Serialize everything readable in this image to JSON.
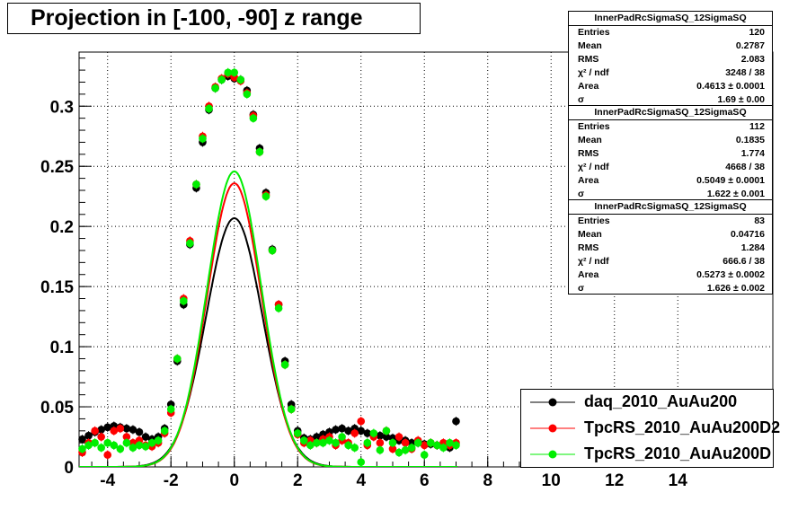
{
  "header": {
    "title": "Projection in [-100, -90] z range"
  },
  "stats": [
    {
      "name": "InnerPadRcSigmaSQ_12SigmaSQ",
      "color": "#000000",
      "rows": [
        {
          "label": "Entries",
          "value": "120"
        },
        {
          "label": "Mean",
          "value": "0.2787"
        },
        {
          "label": "RMS",
          "value": "2.083"
        },
        {
          "label": "χ² / ndf",
          "value": "3248 / 38"
        },
        {
          "label": "Area",
          "value": "0.4613 ± 0.0001"
        },
        {
          "label": "σ",
          "value": "1.69 ± 0.00"
        }
      ]
    },
    {
      "name": "InnerPadRcSigmaSQ_12SigmaSQ",
      "color": "#ff0000",
      "rows": [
        {
          "label": "Entries",
          "value": "112"
        },
        {
          "label": "Mean",
          "value": "0.1835"
        },
        {
          "label": "RMS",
          "value": "1.774"
        },
        {
          "label": "χ² / ndf",
          "value": "4668 / 38"
        },
        {
          "label": "Area",
          "value": "0.5049 ± 0.0001"
        },
        {
          "label": "σ",
          "value": "1.622 ± 0.001"
        }
      ]
    },
    {
      "name": "InnerPadRcSigmaSQ_12SigmaSQ",
      "color": "#00ee00",
      "rows": [
        {
          "label": "Entries",
          "value": "83"
        },
        {
          "label": "Mean",
          "value": "0.04716"
        },
        {
          "label": "RMS",
          "value": "1.284"
        },
        {
          "label": "χ² / ndf",
          "value": "666.6 / 38"
        },
        {
          "label": "Area",
          "value": "0.5273 ± 0.0002"
        },
        {
          "label": "σ",
          "value": "1.626 ± 0.002"
        }
      ]
    }
  ],
  "legend": [
    {
      "label": "daq_2010_AuAu200",
      "color": "#000000"
    },
    {
      "label": "TpcRS_2010_AuAu200D2",
      "color": "#ff0000"
    },
    {
      "label": "TpcRS_2010_AuAu200D",
      "color": "#00ee00"
    }
  ],
  "chart_data": {
    "type": "scatter",
    "title": "Projection in [-100, -90] z range",
    "xlabel": "",
    "ylabel": "",
    "xlim": [
      -4.9,
      17
    ],
    "ylim": [
      0,
      0.345
    ],
    "x_ticks": [
      "-4",
      "-2",
      "0",
      "2",
      "4",
      "6",
      "8",
      "10",
      "12",
      "14"
    ],
    "y_ticks": [
      "0",
      "0.05",
      "0.1",
      "0.15",
      "0.2",
      "0.25",
      "0.3"
    ],
    "grid": true,
    "legend_position": "bottom-right",
    "series": [
      {
        "name": "daq_2010_AuAu200",
        "color": "#000000",
        "x": [
          -4.8,
          -4.6,
          -4.4,
          -4.2,
          -4.0,
          -3.8,
          -3.6,
          -3.4,
          -3.2,
          -3.0,
          -2.8,
          -2.6,
          -2.4,
          -2.2,
          -2.0,
          -1.8,
          -1.6,
          -1.4,
          -1.2,
          -1.0,
          -0.8,
          -0.6,
          -0.4,
          -0.2,
          0.0,
          0.2,
          0.4,
          0.6,
          0.8,
          1.0,
          1.2,
          1.4,
          1.6,
          1.8,
          2.0,
          2.2,
          2.4,
          2.6,
          2.8,
          3.0,
          3.2,
          3.4,
          3.6,
          3.8,
          4.0,
          4.2,
          4.4,
          4.6,
          4.8,
          5.0,
          5.2,
          5.4,
          5.6,
          5.8,
          6.0,
          6.2,
          6.4,
          6.6,
          6.8,
          7.0
        ],
        "y": [
          0.023,
          0.026,
          0.029,
          0.031,
          0.033,
          0.034,
          0.033,
          0.032,
          0.031,
          0.029,
          0.025,
          0.023,
          0.025,
          0.032,
          0.052,
          0.088,
          0.135,
          0.185,
          0.232,
          0.27,
          0.297,
          0.315,
          0.322,
          0.325,
          0.323,
          0.322,
          0.313,
          0.293,
          0.265,
          0.228,
          0.181,
          0.135,
          0.088,
          0.052,
          0.03,
          0.024,
          0.023,
          0.025,
          0.027,
          0.029,
          0.031,
          0.032,
          0.03,
          0.032,
          0.03,
          0.028,
          0.027,
          0.026,
          0.025,
          0.024,
          0.022,
          0.022,
          0.02,
          0.02,
          0.019,
          0.019,
          0.018,
          0.017,
          0.016,
          0.038
        ]
      },
      {
        "name": "TpcRS_2010_AuAu200D2",
        "color": "#ff0000",
        "x": [
          -4.8,
          -4.6,
          -4.4,
          -4.2,
          -4.0,
          -3.8,
          -3.6,
          -3.4,
          -3.2,
          -3.0,
          -2.8,
          -2.6,
          -2.4,
          -2.2,
          -2.0,
          -1.8,
          -1.6,
          -1.4,
          -1.2,
          -1.0,
          -0.8,
          -0.6,
          -0.4,
          -0.2,
          0.0,
          0.2,
          0.4,
          0.6,
          0.8,
          1.0,
          1.2,
          1.4,
          1.6,
          1.8,
          2.0,
          2.2,
          2.4,
          2.6,
          2.8,
          3.0,
          3.2,
          3.4,
          3.6,
          3.8,
          4.0,
          4.2,
          4.4,
          4.6,
          4.8,
          5.0,
          5.2,
          5.4,
          5.6,
          5.8,
          6.0,
          6.2,
          6.4,
          6.6,
          6.8,
          7.0
        ],
        "y": [
          0.012,
          0.02,
          0.03,
          0.025,
          0.01,
          0.03,
          0.032,
          0.025,
          0.02,
          0.022,
          0.018,
          0.017,
          0.02,
          0.028,
          0.045,
          0.09,
          0.14,
          0.188,
          0.235,
          0.275,
          0.3,
          0.316,
          0.323,
          0.327,
          0.324,
          0.321,
          0.311,
          0.292,
          0.262,
          0.226,
          0.18,
          0.135,
          0.085,
          0.048,
          0.027,
          0.02,
          0.022,
          0.02,
          0.023,
          0.025,
          0.018,
          0.022,
          0.02,
          0.028,
          0.038,
          0.018,
          0.025,
          0.02,
          0.03,
          0.015,
          0.025,
          0.02,
          0.015,
          0.022,
          0.018,
          0.02,
          0.018,
          0.02,
          0.018,
          0.02
        ]
      },
      {
        "name": "TpcRS_2010_AuAu200D",
        "color": "#00ee00",
        "x": [
          -4.8,
          -4.6,
          -4.4,
          -4.2,
          -4.0,
          -3.8,
          -3.6,
          -3.4,
          -3.2,
          -3.0,
          -2.8,
          -2.6,
          -2.4,
          -2.2,
          -2.0,
          -1.8,
          -1.6,
          -1.4,
          -1.2,
          -1.0,
          -0.8,
          -0.6,
          -0.4,
          -0.2,
          0.0,
          0.2,
          0.4,
          0.6,
          0.8,
          1.0,
          1.2,
          1.4,
          1.6,
          1.8,
          2.0,
          2.2,
          2.4,
          2.6,
          2.8,
          3.0,
          3.2,
          3.4,
          3.6,
          3.8,
          4.0,
          4.2,
          4.4,
          4.6,
          4.8,
          5.0,
          5.2,
          5.4,
          5.6,
          5.8,
          6.0,
          6.2,
          6.4,
          6.6,
          6.8,
          7.0
        ],
        "y": [
          0.015,
          0.018,
          0.02,
          0.016,
          0.02,
          0.018,
          0.015,
          0.02,
          0.016,
          0.018,
          0.017,
          0.02,
          0.022,
          0.03,
          0.048,
          0.09,
          0.138,
          0.186,
          0.235,
          0.273,
          0.298,
          0.315,
          0.322,
          0.328,
          0.328,
          0.322,
          0.31,
          0.29,
          0.262,
          0.225,
          0.18,
          0.132,
          0.085,
          0.048,
          0.028,
          0.022,
          0.018,
          0.02,
          0.02,
          0.022,
          0.02,
          0.025,
          0.018,
          0.016,
          0.004,
          0.02,
          0.028,
          0.014,
          0.03,
          0.02,
          0.012,
          0.014,
          0.016,
          0.02,
          0.01,
          0.02,
          0.018,
          0.016,
          0.02,
          0.018
        ]
      }
    ],
    "fits": [
      {
        "name": "daq_2010_AuAu200",
        "color": "#000000",
        "area": 0.4613,
        "sigma": 1.69,
        "mean": 0.0
      },
      {
        "name": "TpcRS_2010_AuAu200D2",
        "color": "#ff0000",
        "area": 0.5049,
        "sigma": 1.622,
        "mean": 0.0
      },
      {
        "name": "TpcRS_2010_AuAu200D",
        "color": "#00ee00",
        "area": 0.5273,
        "sigma": 1.626,
        "mean": 0.0
      }
    ]
  }
}
